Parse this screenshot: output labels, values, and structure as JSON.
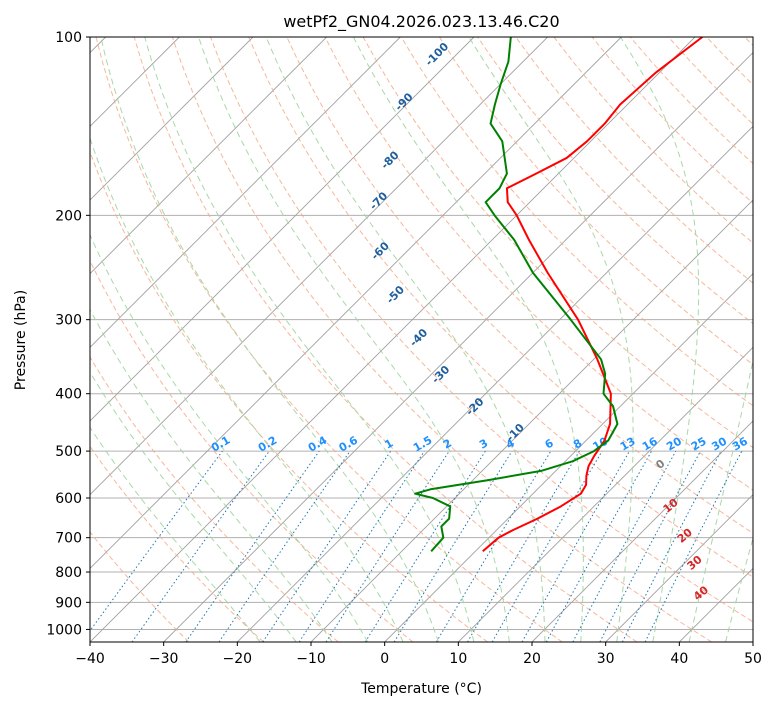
{
  "chart_data": {
    "type": "skew-t",
    "title": "wetPf2_GN04.2026.023.13.46.C20",
    "xlabel": "Temperature (°C)",
    "ylabel": "Pressure (hPa)",
    "xlim": [
      -40,
      50
    ],
    "ylim_hpa": [
      1050,
      100
    ],
    "x_ticks": [
      -40,
      -30,
      -20,
      -10,
      0,
      10,
      20,
      30,
      40,
      50
    ],
    "y_ticks": [
      100,
      200,
      300,
      400,
      500,
      600,
      700,
      800,
      900,
      1000
    ],
    "x_tick_labels": [
      "−40",
      "−30",
      "−20",
      "−10",
      "0",
      "10",
      "20",
      "30",
      "40",
      "50"
    ],
    "y_tick_labels": [
      "100",
      "200",
      "300",
      "400",
      "500",
      "600",
      "700",
      "800",
      "900",
      "1000"
    ],
    "colors": {
      "temperature": "#ff0000",
      "dewpoint": "#008000",
      "isotherm": "#a0a0a0",
      "dry_adiabat": "#f4a582",
      "moist_adiabat": "#9fd49f",
      "mixing_ratio": "#1f77b4",
      "mixing_label": "#1e90ff",
      "dry_label": "#1f5f9f",
      "moist_label": "#d62728",
      "grid": "#b0b0b0"
    },
    "series": [
      {
        "name": "temperature",
        "points": [
          {
            "p": 738,
            "t": 1.0
          },
          {
            "p": 700,
            "t": 1.3
          },
          {
            "p": 680,
            "t": 2.2
          },
          {
            "p": 650,
            "t": 4.0
          },
          {
            "p": 620,
            "t": 5.5
          },
          {
            "p": 590,
            "t": 6.5
          },
          {
            "p": 570,
            "t": 6.0
          },
          {
            "p": 550,
            "t": 4.8
          },
          {
            "p": 530,
            "t": 3.8
          },
          {
            "p": 510,
            "t": 3.2
          },
          {
            "p": 480,
            "t": 2.5
          },
          {
            "p": 450,
            "t": 1.0
          },
          {
            "p": 400,
            "t": -3.0
          },
          {
            "p": 350,
            "t": -9.5
          },
          {
            "p": 300,
            "t": -17.5
          },
          {
            "p": 250,
            "t": -28.0
          },
          {
            "p": 220,
            "t": -35.0
          },
          {
            "p": 200,
            "t": -40.0
          },
          {
            "p": 190,
            "t": -43.0
          },
          {
            "p": 180,
            "t": -45.0
          },
          {
            "p": 170,
            "t": -43.0
          },
          {
            "p": 160,
            "t": -41.0
          },
          {
            "p": 150,
            "t": -40.5
          },
          {
            "p": 140,
            "t": -40.5
          },
          {
            "p": 130,
            "t": -41.0
          },
          {
            "p": 115,
            "t": -40.5
          },
          {
            "p": 100,
            "t": -39.0
          }
        ]
      },
      {
        "name": "dewpoint",
        "points": [
          {
            "p": 738,
            "t": -6.0
          },
          {
            "p": 700,
            "t": -6.2
          },
          {
            "p": 670,
            "t": -8.0
          },
          {
            "p": 650,
            "t": -8.0
          },
          {
            "p": 620,
            "t": -9.5
          },
          {
            "p": 600,
            "t": -13.0
          },
          {
            "p": 590,
            "t": -16.0
          },
          {
            "p": 580,
            "t": -14.5
          },
          {
            "p": 560,
            "t": -8.0
          },
          {
            "p": 540,
            "t": -2.0
          },
          {
            "p": 520,
            "t": 1.0
          },
          {
            "p": 500,
            "t": 2.5
          },
          {
            "p": 480,
            "t": 3.0
          },
          {
            "p": 450,
            "t": 2.0
          },
          {
            "p": 420,
            "t": -1.0
          },
          {
            "p": 400,
            "t": -4.0
          },
          {
            "p": 370,
            "t": -6.5
          },
          {
            "p": 350,
            "t": -9.0
          },
          {
            "p": 300,
            "t": -18.5
          },
          {
            "p": 250,
            "t": -30.0
          },
          {
            "p": 220,
            "t": -37.0
          },
          {
            "p": 200,
            "t": -43.0
          },
          {
            "p": 190,
            "t": -46.0
          },
          {
            "p": 180,
            "t": -46.0
          },
          {
            "p": 170,
            "t": -47.0
          },
          {
            "p": 150,
            "t": -52.0
          },
          {
            "p": 140,
            "t": -56.0
          },
          {
            "p": 130,
            "t": -58.0
          },
          {
            "p": 120,
            "t": -60.0
          },
          {
            "p": 110,
            "t": -62.0
          },
          {
            "p": 100,
            "t": -65.0
          }
        ]
      }
    ],
    "mixing_ratio_values": [
      0.1,
      0.2,
      0.4,
      0.6,
      1,
      1.5,
      2,
      3,
      4,
      6,
      8,
      10,
      13,
      16,
      20,
      25,
      30,
      36
    ],
    "mixing_ratio_labels": [
      "0.1",
      "0.2",
      "0.4",
      "0.6",
      "1",
      "1.5",
      "2",
      "3",
      "4",
      "6",
      "8",
      "10",
      "13",
      "16",
      "20",
      "25",
      "30",
      "36"
    ],
    "dry_adiabat_labels": [
      {
        "text": "-100",
        "p": 108,
        "t": -72
      },
      {
        "text": "-90",
        "p": 130,
        "t": -70
      },
      {
        "text": "-80",
        "p": 163,
        "t": -64
      },
      {
        "text": "-70",
        "p": 191,
        "t": -60
      },
      {
        "text": "-60",
        "p": 232,
        "t": -53
      },
      {
        "text": "-50",
        "p": 275,
        "t": -45
      },
      {
        "text": "-40",
        "p": 325,
        "t": -36
      },
      {
        "text": "-30",
        "p": 375,
        "t": -28
      },
      {
        "text": "-20",
        "p": 425,
        "t": -19
      },
      {
        "text": "-10",
        "p": 470,
        "t": -10
      }
    ],
    "moist_adiabat_labels": [
      {
        "text": "0",
        "p": 532,
        "t": 14
      },
      {
        "text": "10",
        "p": 625,
        "t": 21
      },
      {
        "text": "20",
        "p": 702,
        "t": 27
      },
      {
        "text": "30",
        "p": 780,
        "t": 32
      },
      {
        "text": "40",
        "p": 878,
        "t": 37
      }
    ]
  }
}
